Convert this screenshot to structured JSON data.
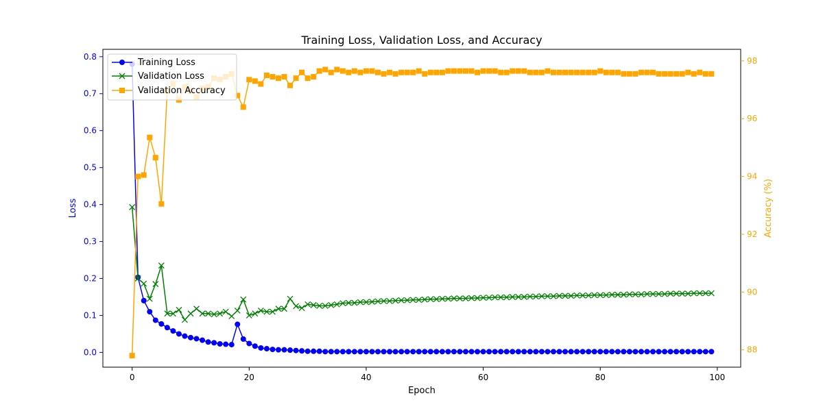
{
  "chart_data": {
    "type": "line",
    "title": "Training Loss, Validation Loss, and Accuracy",
    "xlabel": "Epoch",
    "ylabel_left": "Loss",
    "ylabel_right": "Accuracy (%)",
    "xlim": [
      -5,
      104
    ],
    "ylim_left": [
      -0.04,
      0.82
    ],
    "ylim_right": [
      87.4,
      98.4
    ],
    "x_ticks": [
      0,
      20,
      40,
      60,
      80,
      100
    ],
    "y_left_ticks": [
      0.0,
      0.1,
      0.2,
      0.3,
      0.4,
      0.5,
      0.6,
      0.7,
      0.8
    ],
    "y_right_ticks": [
      88,
      90,
      92,
      94,
      96,
      98
    ],
    "grid": false,
    "legend_position": "top-left",
    "colors": {
      "training_loss": "#0000ff",
      "validation_loss": "#008000",
      "validation_accuracy": "#ffa500",
      "left_axis": "#0000ff",
      "right_axis": "#ffa500"
    },
    "x": [
      0,
      1,
      2,
      3,
      4,
      5,
      6,
      7,
      8,
      9,
      10,
      11,
      12,
      13,
      14,
      15,
      16,
      17,
      18,
      19,
      20,
      21,
      22,
      23,
      24,
      25,
      26,
      27,
      28,
      29,
      30,
      31,
      32,
      33,
      34,
      35,
      36,
      37,
      38,
      39,
      40,
      41,
      42,
      43,
      44,
      45,
      46,
      47,
      48,
      49,
      50,
      51,
      52,
      53,
      54,
      55,
      56,
      57,
      58,
      59,
      60,
      61,
      62,
      63,
      64,
      65,
      66,
      67,
      68,
      69,
      70,
      71,
      72,
      73,
      74,
      75,
      76,
      77,
      78,
      79,
      80,
      81,
      82,
      83,
      84,
      85,
      86,
      87,
      88,
      89,
      90,
      91,
      92,
      93,
      94,
      95,
      96,
      97,
      98,
      99
    ],
    "series": [
      {
        "name": "Training Loss",
        "axis": "left",
        "marker": "circle",
        "values": [
          0.78,
          0.203,
          0.14,
          0.11,
          0.087,
          0.077,
          0.067,
          0.058,
          0.05,
          0.044,
          0.04,
          0.037,
          0.033,
          0.028,
          0.026,
          0.023,
          0.022,
          0.021,
          0.076,
          0.036,
          0.024,
          0.017,
          0.012,
          0.01,
          0.008,
          0.007,
          0.007,
          0.006,
          0.005,
          0.004,
          0.003,
          0.003,
          0.003,
          0.002,
          0.002,
          0.002,
          0.002,
          0.002,
          0.002,
          0.002,
          0.002,
          0.002,
          0.002,
          0.002,
          0.002,
          0.002,
          0.002,
          0.002,
          0.002,
          0.002,
          0.002,
          0.002,
          0.002,
          0.002,
          0.002,
          0.002,
          0.002,
          0.002,
          0.002,
          0.002,
          0.002,
          0.002,
          0.002,
          0.002,
          0.002,
          0.002,
          0.002,
          0.002,
          0.002,
          0.002,
          0.002,
          0.002,
          0.002,
          0.002,
          0.002,
          0.002,
          0.002,
          0.002,
          0.002,
          0.002,
          0.002,
          0.002,
          0.002,
          0.002,
          0.002,
          0.002,
          0.002,
          0.002,
          0.002,
          0.002,
          0.002,
          0.002,
          0.002,
          0.002,
          0.002,
          0.002,
          0.002,
          0.002,
          0.002,
          0.002
        ]
      },
      {
        "name": "Validation Loss",
        "axis": "left",
        "marker": "x",
        "values": [
          0.393,
          0.2,
          0.186,
          0.145,
          0.185,
          0.235,
          0.105,
          0.105,
          0.115,
          0.088,
          0.105,
          0.118,
          0.105,
          0.105,
          0.103,
          0.105,
          0.11,
          0.098,
          0.113,
          0.143,
          0.1,
          0.105,
          0.113,
          0.11,
          0.11,
          0.118,
          0.118,
          0.145,
          0.125,
          0.12,
          0.13,
          0.128,
          0.126,
          0.126,
          0.128,
          0.13,
          0.133,
          0.134,
          0.134,
          0.136,
          0.136,
          0.137,
          0.138,
          0.139,
          0.139,
          0.14,
          0.141,
          0.141,
          0.142,
          0.142,
          0.143,
          0.144,
          0.144,
          0.145,
          0.145,
          0.146,
          0.146,
          0.146,
          0.147,
          0.147,
          0.148,
          0.148,
          0.149,
          0.149,
          0.149,
          0.15,
          0.15,
          0.15,
          0.151,
          0.151,
          0.152,
          0.152,
          0.152,
          0.153,
          0.153,
          0.153,
          0.154,
          0.154,
          0.154,
          0.155,
          0.155,
          0.155,
          0.156,
          0.156,
          0.156,
          0.157,
          0.157,
          0.157,
          0.158,
          0.158,
          0.158,
          0.158,
          0.159,
          0.159,
          0.159,
          0.159,
          0.16,
          0.16,
          0.16,
          0.16
        ]
      },
      {
        "name": "Validation Accuracy",
        "axis": "right",
        "marker": "square",
        "values": [
          87.8,
          94.0,
          94.05,
          95.35,
          94.65,
          93.05,
          96.95,
          97.2,
          96.65,
          97.1,
          96.95,
          96.75,
          97.05,
          97.1,
          97.4,
          97.35,
          97.45,
          97.55,
          96.8,
          96.4,
          97.35,
          97.3,
          97.2,
          97.5,
          97.45,
          97.4,
          97.45,
          97.15,
          97.4,
          97.6,
          97.4,
          97.45,
          97.65,
          97.7,
          97.6,
          97.7,
          97.65,
          97.6,
          97.65,
          97.6,
          97.65,
          97.65,
          97.6,
          97.55,
          97.6,
          97.55,
          97.6,
          97.6,
          97.6,
          97.65,
          97.55,
          97.6,
          97.6,
          97.6,
          97.65,
          97.65,
          97.65,
          97.65,
          97.65,
          97.6,
          97.65,
          97.65,
          97.65,
          97.6,
          97.6,
          97.65,
          97.65,
          97.65,
          97.6,
          97.6,
          97.6,
          97.65,
          97.6,
          97.6,
          97.6,
          97.6,
          97.6,
          97.6,
          97.6,
          97.6,
          97.65,
          97.6,
          97.6,
          97.6,
          97.55,
          97.55,
          97.55,
          97.6,
          97.6,
          97.6,
          97.55,
          97.55,
          97.55,
          97.55,
          97.55,
          97.6,
          97.55,
          97.6,
          97.55,
          97.55
        ]
      }
    ]
  }
}
